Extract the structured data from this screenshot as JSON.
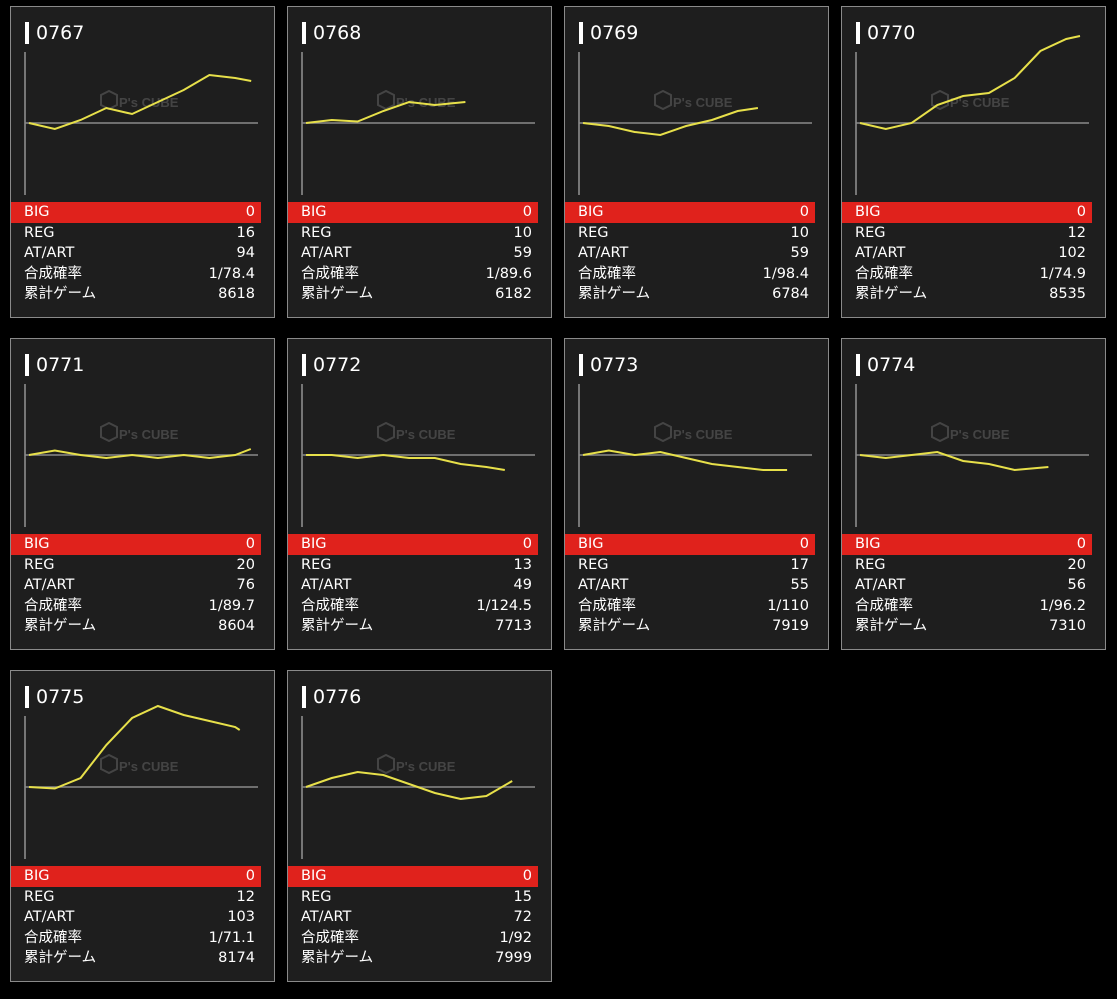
{
  "labels": {
    "big": "BIG",
    "reg": "REG",
    "at": "AT/ART",
    "prob": "合成確率",
    "games": "累計ゲーム"
  },
  "watermark": "P's CUBE",
  "colors": {
    "line": "#e7e04a",
    "big_bar": "#e0221c",
    "card_bg": "#1e1e1e"
  },
  "machines": [
    {
      "id": "0767",
      "big": "0",
      "reg": "16",
      "at": "94",
      "prob": "1/78.4",
      "games": "8618"
    },
    {
      "id": "0768",
      "big": "0",
      "reg": "10",
      "at": "59",
      "prob": "1/89.6",
      "games": "6182"
    },
    {
      "id": "0769",
      "big": "0",
      "reg": "10",
      "at": "59",
      "prob": "1/98.4",
      "games": "6784"
    },
    {
      "id": "0770",
      "big": "0",
      "reg": "12",
      "at": "102",
      "prob": "1/74.9",
      "games": "8535"
    },
    {
      "id": "0771",
      "big": "0",
      "reg": "20",
      "at": "76",
      "prob": "1/89.7",
      "games": "8604"
    },
    {
      "id": "0772",
      "big": "0",
      "reg": "13",
      "at": "49",
      "prob": "1/124.5",
      "games": "7713"
    },
    {
      "id": "0773",
      "big": "0",
      "reg": "17",
      "at": "55",
      "prob": "1/110",
      "games": "7919"
    },
    {
      "id": "0774",
      "big": "0",
      "reg": "20",
      "at": "56",
      "prob": "1/96.2",
      "games": "7310"
    },
    {
      "id": "0775",
      "big": "0",
      "reg": "12",
      "at": "103",
      "prob": "1/71.1",
      "games": "8174"
    },
    {
      "id": "0776",
      "big": "0",
      "reg": "15",
      "at": "72",
      "prob": "1/92",
      "games": "7999"
    }
  ],
  "chart_data": [
    {
      "type": "line",
      "machine": "0767",
      "x": [
        0,
        1000,
        2000,
        3000,
        4000,
        5000,
        6000,
        7000,
        8000,
        8618
      ],
      "y": [
        0,
        -200,
        100,
        500,
        300,
        700,
        1100,
        1600,
        1500,
        1400
      ]
    },
    {
      "type": "line",
      "machine": "0768",
      "x": [
        0,
        1000,
        2000,
        3000,
        4000,
        5000,
        6182
      ],
      "y": [
        0,
        100,
        50,
        400,
        700,
        600,
        700
      ]
    },
    {
      "type": "line",
      "machine": "0769",
      "x": [
        0,
        1000,
        2000,
        3000,
        4000,
        5000,
        6000,
        6784
      ],
      "y": [
        0,
        -100,
        -300,
        -400,
        -100,
        100,
        400,
        500
      ]
    },
    {
      "type": "line",
      "machine": "0770",
      "x": [
        0,
        1000,
        2000,
        3000,
        4000,
        5000,
        6000,
        7000,
        8000,
        8535
      ],
      "y": [
        0,
        -200,
        0,
        600,
        900,
        1000,
        1500,
        2400,
        2800,
        2900
      ]
    },
    {
      "type": "line",
      "machine": "0771",
      "x": [
        0,
        1000,
        2000,
        3000,
        4000,
        5000,
        6000,
        7000,
        8000,
        8604
      ],
      "y": [
        0,
        150,
        0,
        -100,
        0,
        -100,
        0,
        -100,
        0,
        200
      ]
    },
    {
      "type": "line",
      "machine": "0772",
      "x": [
        0,
        1000,
        2000,
        3000,
        4000,
        5000,
        6000,
        7000,
        7713
      ],
      "y": [
        0,
        0,
        -100,
        0,
        -100,
        -100,
        -300,
        -400,
        -500
      ]
    },
    {
      "type": "line",
      "machine": "0773",
      "x": [
        0,
        1000,
        2000,
        3000,
        4000,
        5000,
        6000,
        7000,
        7919
      ],
      "y": [
        0,
        150,
        0,
        100,
        -100,
        -300,
        -400,
        -500,
        -500
      ]
    },
    {
      "type": "line",
      "machine": "0774",
      "x": [
        0,
        1000,
        2000,
        3000,
        4000,
        5000,
        6000,
        7310
      ],
      "y": [
        0,
        -100,
        0,
        100,
        -200,
        -300,
        -500,
        -400
      ]
    },
    {
      "type": "line",
      "machine": "0775",
      "x": [
        0,
        1000,
        2000,
        3000,
        4000,
        5000,
        6000,
        7000,
        8000,
        8174
      ],
      "y": [
        0,
        -50,
        300,
        1400,
        2300,
        2700,
        2400,
        2200,
        2000,
        1900
      ]
    },
    {
      "type": "line",
      "machine": "0776",
      "x": [
        0,
        1000,
        2000,
        3000,
        4000,
        5000,
        6000,
        7000,
        7999
      ],
      "y": [
        0,
        300,
        500,
        400,
        100,
        -200,
        -400,
        -300,
        200
      ]
    }
  ]
}
